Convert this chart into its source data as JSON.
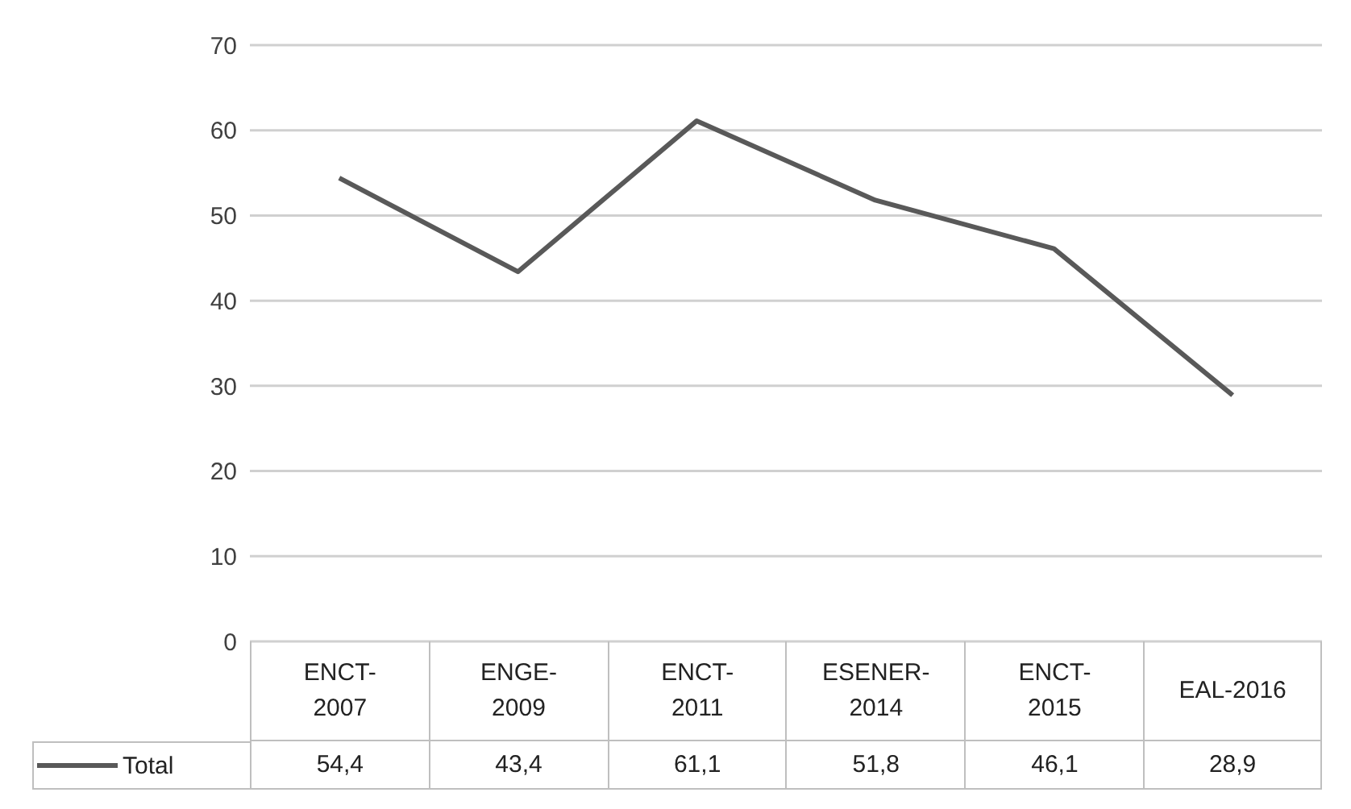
{
  "chart_data": {
    "type": "line",
    "categories": [
      "ENCT-2007",
      "ENGE-2009",
      "ENCT-2011",
      "ESENER-2014",
      "ENCT-2015",
      "EAL-2016"
    ],
    "series": [
      {
        "name": "Total",
        "color": "#595959",
        "values": [
          54.4,
          43.4,
          61.1,
          51.8,
          46.1,
          28.9
        ],
        "value_labels": [
          "54,4",
          "43,4",
          "61,1",
          "51,8",
          "46,1",
          "28,9"
        ]
      }
    ],
    "ylim": [
      0,
      70
    ],
    "yticks": [
      0,
      10,
      20,
      30,
      40,
      50,
      60,
      70
    ],
    "grid": "y",
    "legend": "bottom",
    "marker": "none",
    "line_style": "solid"
  }
}
